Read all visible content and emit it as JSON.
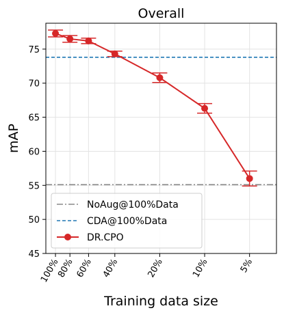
{
  "chart_data": {
    "type": "line",
    "title": "Overall",
    "xlabel": "Training data size",
    "ylabel": "mAP",
    "ylim": [
      45,
      78.8
    ],
    "yticks": [
      45,
      50,
      55,
      60,
      65,
      70,
      75
    ],
    "x_scale": "log",
    "x_reversed": true,
    "x_values": [
      100,
      80,
      60,
      40,
      20,
      10,
      5
    ],
    "x_tick_labels": [
      "100%",
      "80%",
      "60%",
      "40%",
      "20%",
      "10%",
      "5%"
    ],
    "grid": true,
    "legend_position": "lower-left",
    "reference_lines": [
      {
        "name": "NoAug@100%Data",
        "value": 55.1,
        "style": "dash-dot",
        "color": "#888888"
      },
      {
        "name": "CDA@100%Data",
        "value": 73.8,
        "style": "dashed",
        "color": "#1f77b4"
      }
    ],
    "series": [
      {
        "name": "DR.CPO",
        "color": "#d62728",
        "values": [
          77.3,
          76.5,
          76.2,
          74.3,
          70.8,
          66.3,
          56.0
        ],
        "errors": [
          0.5,
          0.5,
          0.4,
          0.4,
          0.7,
          0.7,
          1.1
        ]
      }
    ]
  }
}
